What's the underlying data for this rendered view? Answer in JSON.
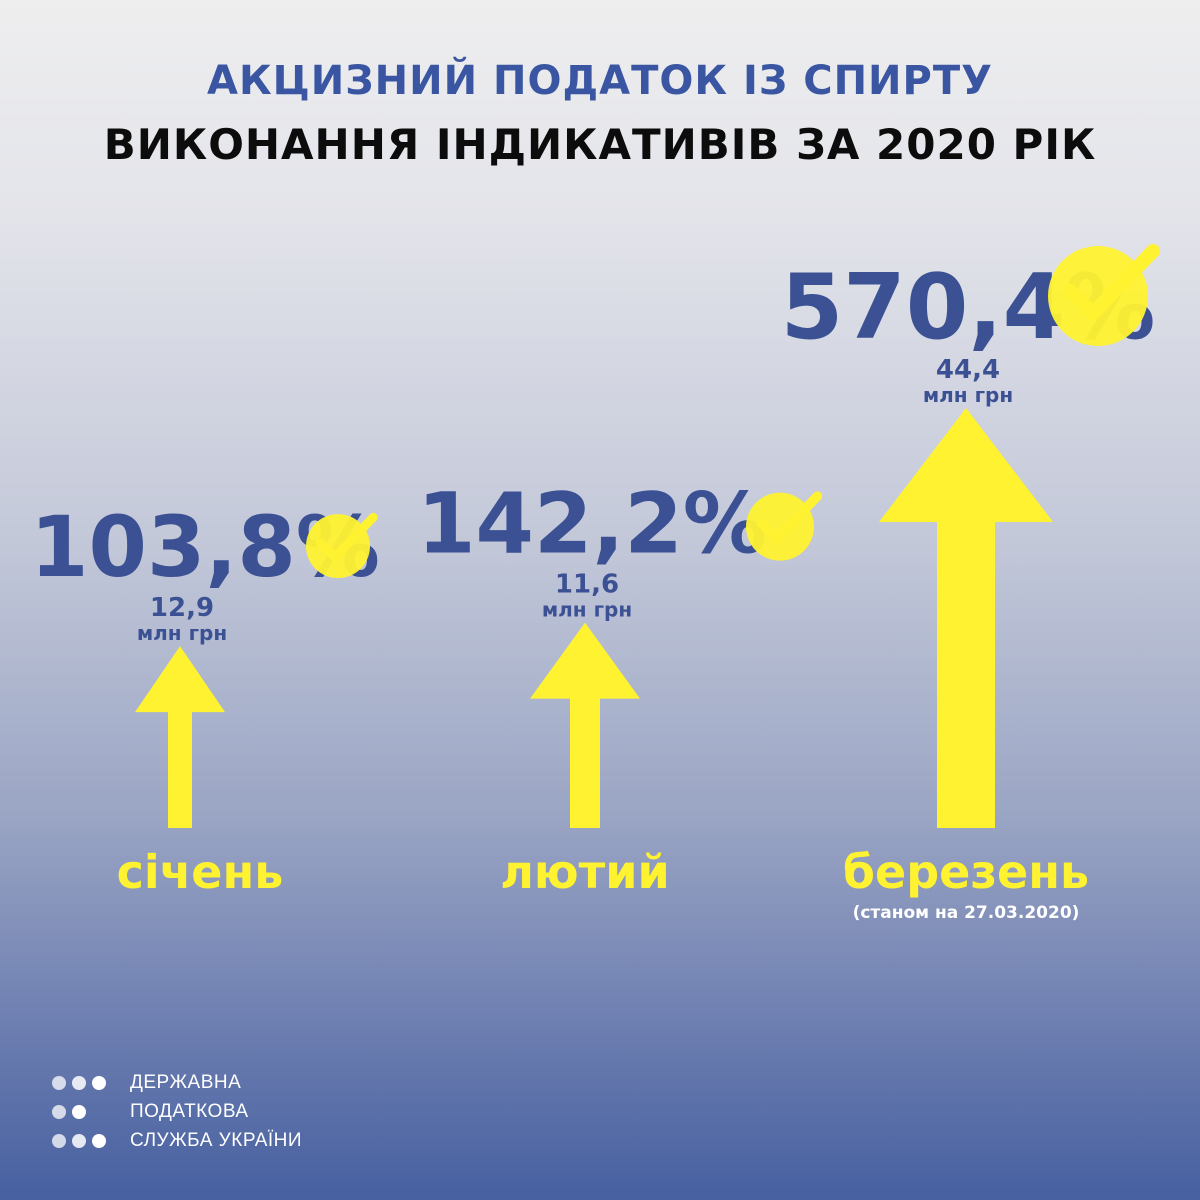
{
  "header": {
    "title": "АКЦИЗНИЙ ПОДАТОК ІЗ СПИРТУ",
    "subtitle": "ВИКОНАННЯ ІНДИКАТИВІВ ЗА 2020 РІК"
  },
  "chart_data": {
    "type": "bar",
    "categories": [
      "січень",
      "лютий",
      "березень"
    ],
    "series": [
      {
        "values": [
          103.8,
          142.2,
          570.4
        ]
      }
    ],
    "percent_labels": [
      "103,8%",
      "142,2%",
      "570,4%"
    ],
    "amounts": [
      12.9,
      11.6,
      44.4
    ],
    "amount_labels": [
      "12,9",
      "11,6",
      "44,4"
    ],
    "amount_unit": "млн грн",
    "notes": [
      "",
      "",
      "(станом на 27.03.2020)"
    ],
    "marker": "upward-arrow",
    "colors": {
      "arrow": "#fff230",
      "label": "#3b5193",
      "check_circle": "#fff230"
    }
  },
  "footer": {
    "logo_lines": [
      "ДЕРЖАВНА",
      "ПОДАТКОВА",
      "СЛУЖБА УКРАЇНИ"
    ]
  },
  "colors": {
    "title_blue": "#3a56a3",
    "title_black": "#0c0c0c",
    "yellow": "#fff230"
  }
}
